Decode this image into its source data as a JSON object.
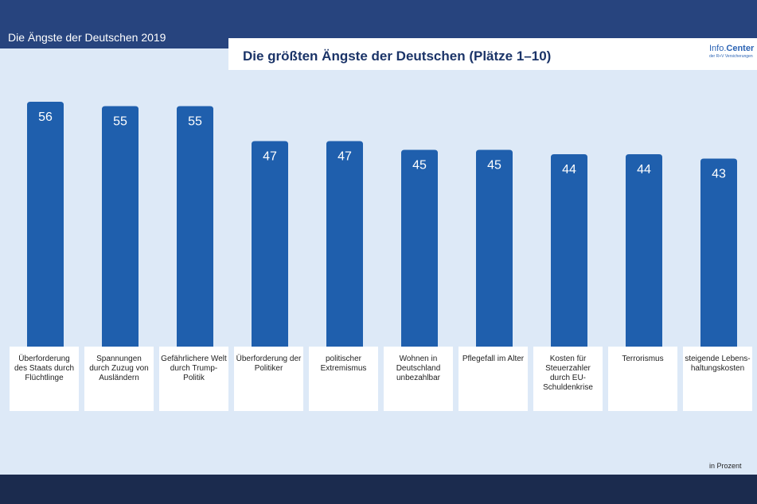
{
  "header": {
    "supertitle": "Die Ängste der Deutschen 2019",
    "chart_title": "Die größten Ängste der Deutschen (Plätze 1–10)",
    "logo_main_a": "Info.",
    "logo_main_b": "Center",
    "logo_sub": "der R+V Versicherungen"
  },
  "footer": {
    "unit_note": "in Prozent"
  },
  "colors": {
    "bar": "#1f5fad",
    "header_band": "#27447e",
    "footer_band": "#1b2b4e",
    "background": "#dde9f7"
  },
  "chart_data": {
    "type": "bar",
    "title": "Die größten Ängste der Deutschen (Plätze 1–10)",
    "unit": "in Prozent",
    "categories": [
      "Überforderung des Staats durch Flüchtlinge",
      "Spannungen durch Zuzug von Ausländern",
      "Gefährlichere Welt durch Trump-Politik",
      "Überforderung der Politiker",
      "politischer Extremismus",
      "Wohnen in Deutschland unbezahlbar",
      "Pflegefall im Alter",
      "Kosten für Steuerzahler durch EU-Schuldenkrise",
      "Terrorismus",
      "steigende Lebens-haltungskosten"
    ],
    "values": [
      56,
      55,
      55,
      47,
      47,
      45,
      45,
      44,
      44,
      43
    ],
    "ylim": [
      0,
      60
    ],
    "xlabel": "",
    "ylabel": ""
  }
}
